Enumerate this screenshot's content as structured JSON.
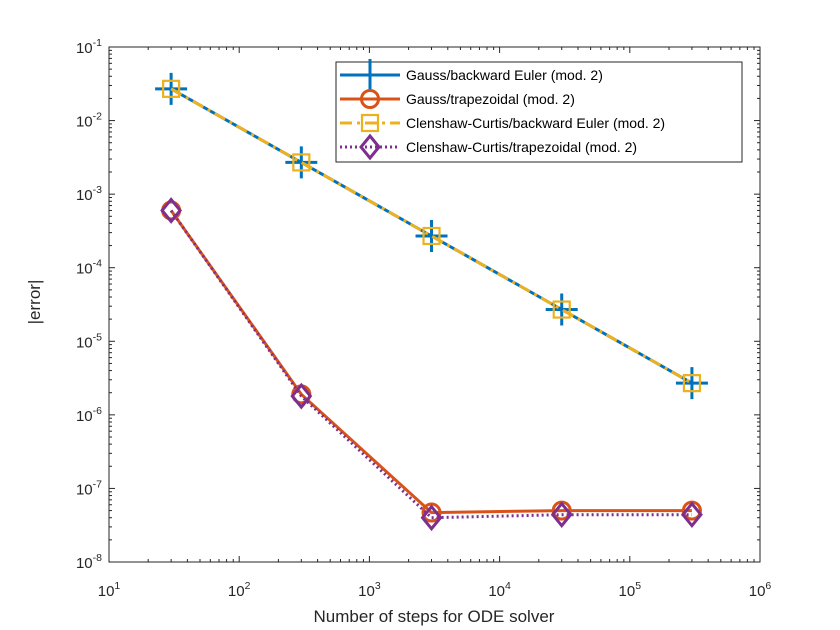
{
  "chart_data": {
    "type": "line",
    "xscale": "log",
    "yscale": "log",
    "xlabel": "Number of steps for ODE solver",
    "ylabel": "|error|",
    "xlim": [
      10,
      1000000
    ],
    "ylim": [
      1e-08,
      0.1
    ],
    "grid": false,
    "legend_position": "top-right",
    "x_ticks": [
      {
        "value": 10,
        "base": "10",
        "exp": "1"
      },
      {
        "value": 100,
        "base": "10",
        "exp": "2"
      },
      {
        "value": 1000,
        "base": "10",
        "exp": "3"
      },
      {
        "value": 10000,
        "base": "10",
        "exp": "4"
      },
      {
        "value": 100000,
        "base": "10",
        "exp": "5"
      },
      {
        "value": 1000000,
        "base": "10",
        "exp": "6"
      }
    ],
    "y_ticks": [
      {
        "value": 1e-08,
        "base": "10",
        "exp": "-8"
      },
      {
        "value": 1e-07,
        "base": "10",
        "exp": "-7"
      },
      {
        "value": 1e-06,
        "base": "10",
        "exp": "-6"
      },
      {
        "value": 1e-05,
        "base": "10",
        "exp": "-5"
      },
      {
        "value": 0.0001,
        "base": "10",
        "exp": "-4"
      },
      {
        "value": 0.001,
        "base": "10",
        "exp": "-3"
      },
      {
        "value": 0.01,
        "base": "10",
        "exp": "-2"
      },
      {
        "value": 0.1,
        "base": "10",
        "exp": "-1"
      }
    ],
    "x": [
      30,
      300,
      3000,
      30000,
      300000
    ],
    "series": [
      {
        "name": "Gauss/backward Euler (mod. 2)",
        "values": [
          0.027,
          0.0027,
          0.00027,
          2.7e-05,
          2.7e-06
        ],
        "color": "#0072BD",
        "line_style": "solid",
        "marker": "plus"
      },
      {
        "name": "Gauss/trapezoidal (mod. 2)",
        "values": [
          0.0006,
          1.9e-06,
          4.7e-08,
          5e-08,
          5e-08
        ],
        "color": "#D95319",
        "line_style": "solid",
        "marker": "circle"
      },
      {
        "name": "Clenshaw-Curtis/backward Euler (mod. 2)",
        "values": [
          0.027,
          0.0027,
          0.00027,
          2.7e-05,
          2.7e-06
        ],
        "color": "#EDB120",
        "line_style": "dashdot",
        "marker": "square"
      },
      {
        "name": "Clenshaw-Curtis/trapezoidal (mod. 2)",
        "values": [
          0.0006,
          1.8e-06,
          4e-08,
          4.4e-08,
          4.4e-08
        ],
        "color": "#7E2F8E",
        "line_style": "dotted",
        "marker": "diamond"
      }
    ]
  }
}
